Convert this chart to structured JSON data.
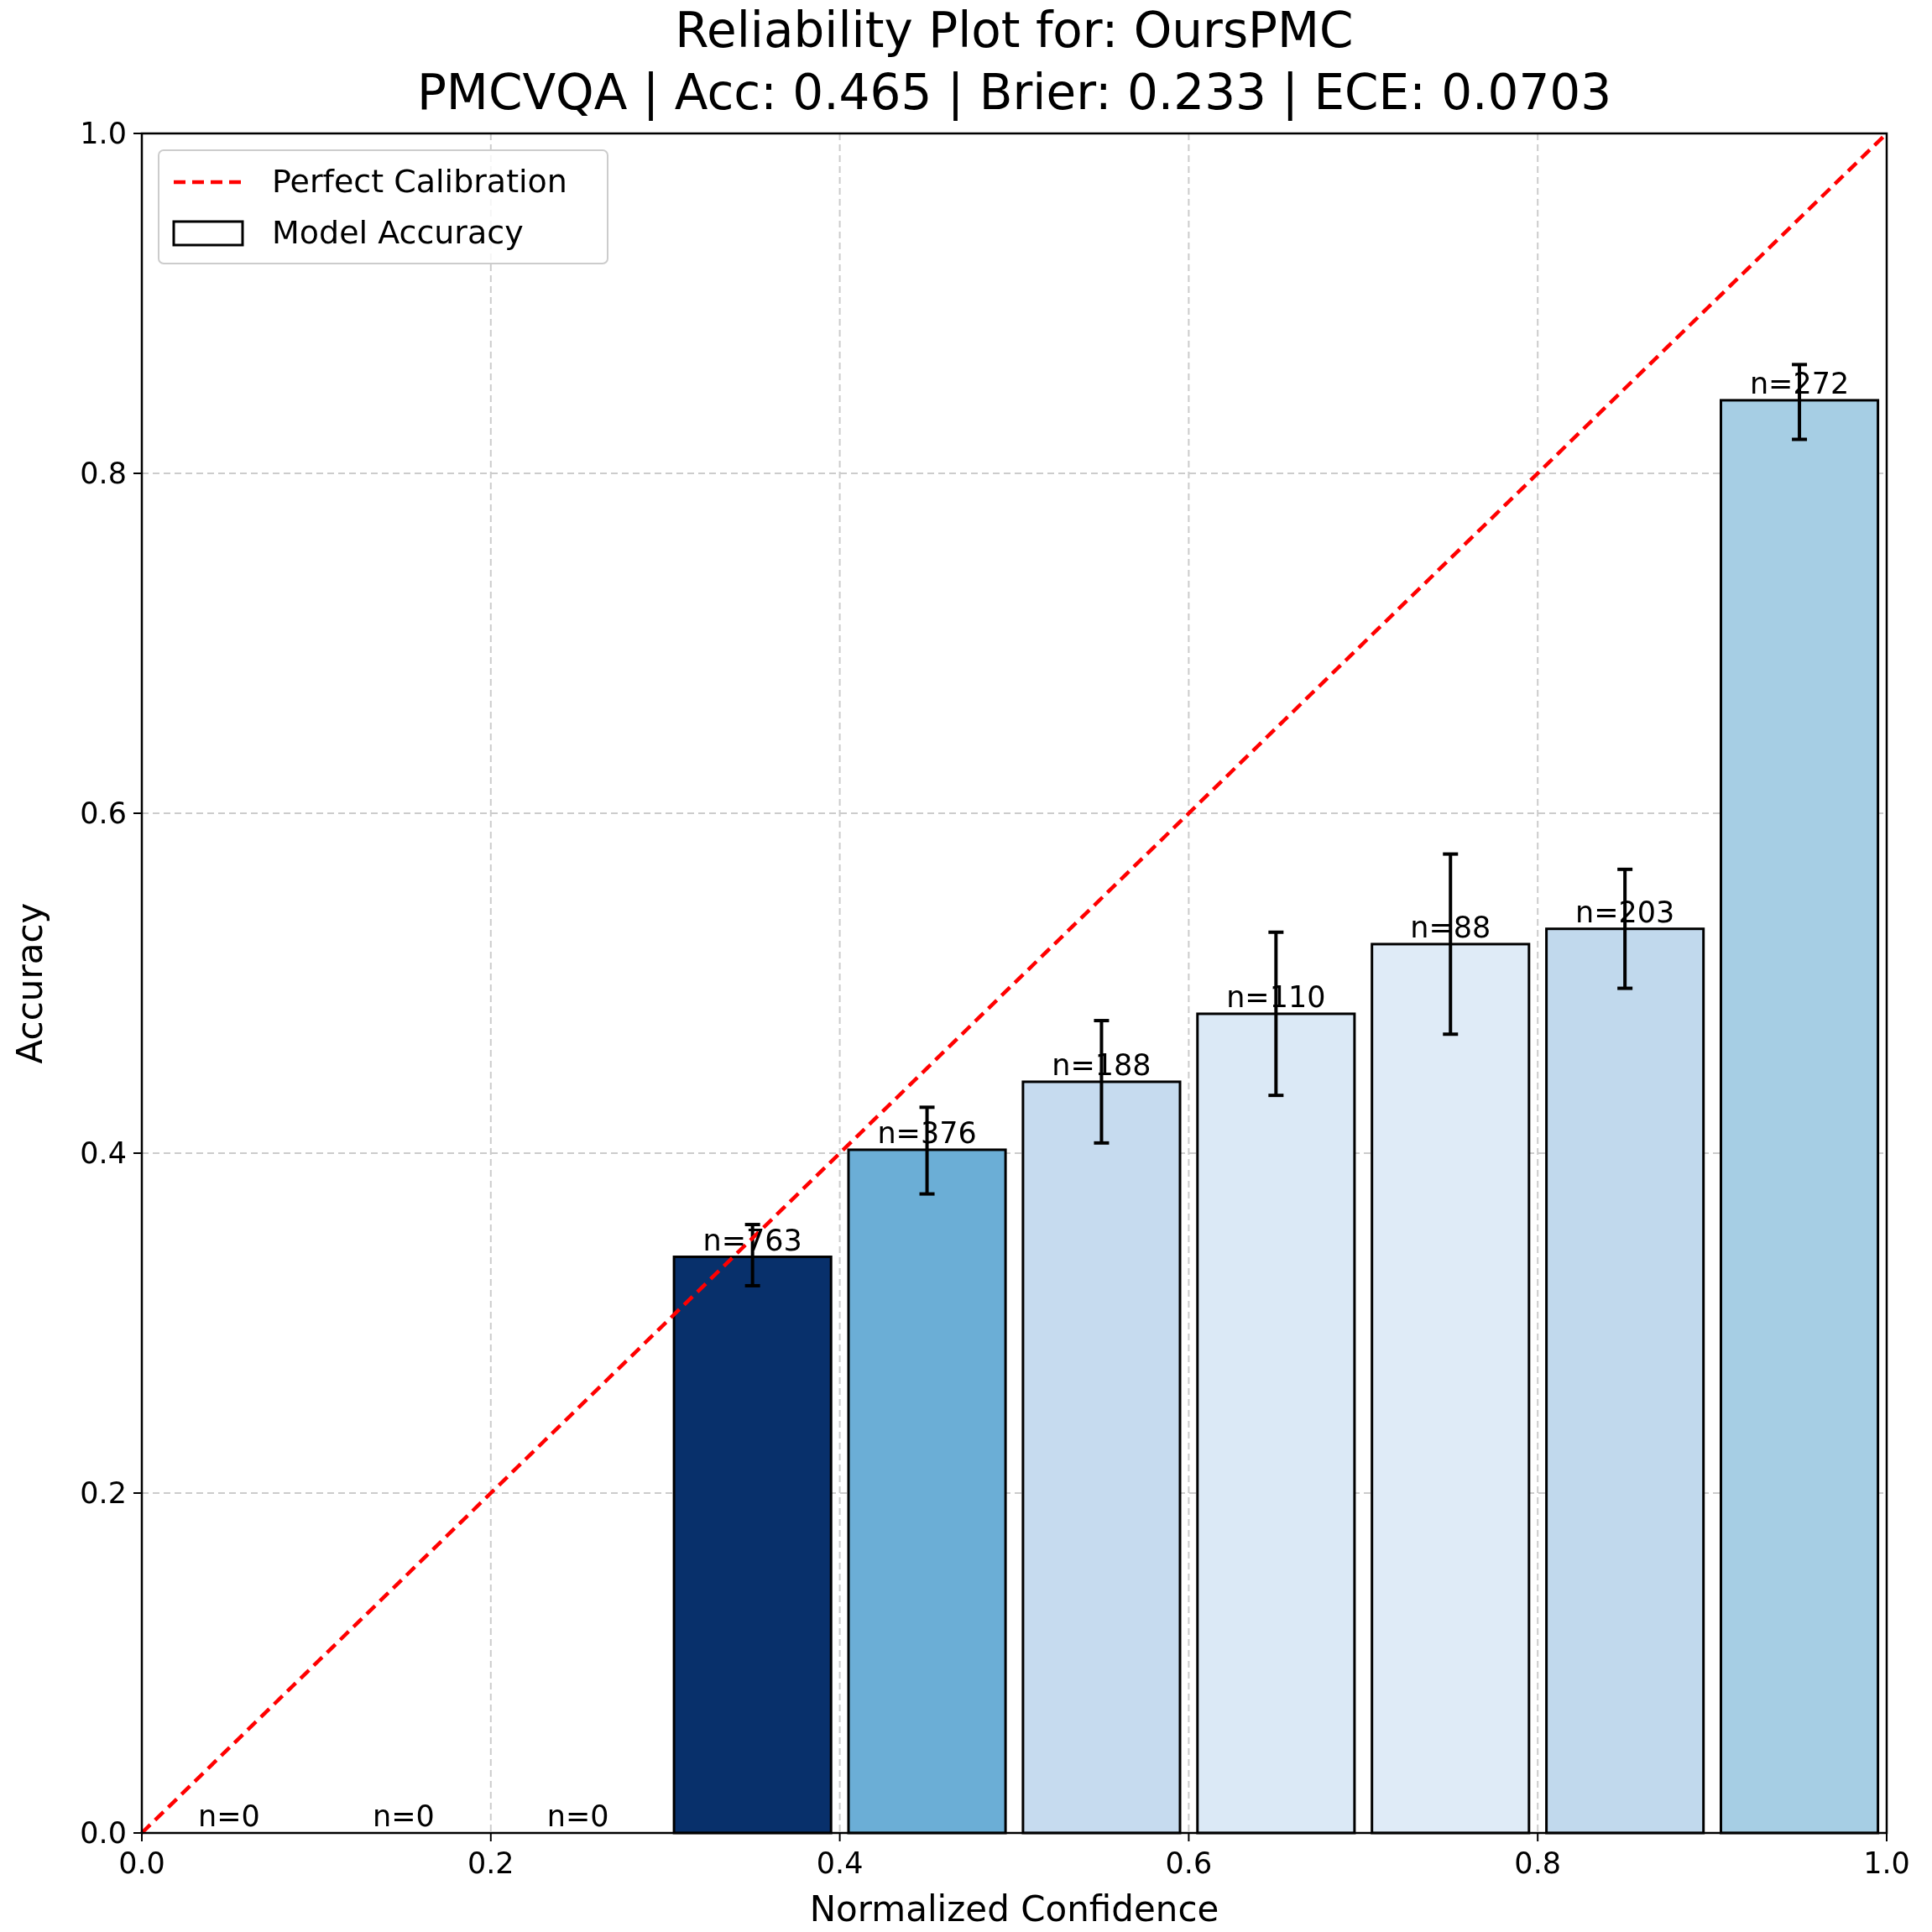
{
  "chart_data": {
    "type": "bar",
    "title": "Reliability Plot for: OursPMC",
    "subtitle": "PMCVQA | Acc: 0.465 | Brier: 0.233 | ECE: 0.0703",
    "xlabel": "Normalized Confidence",
    "ylabel": "Accuracy",
    "x": [
      0.05,
      0.15,
      0.25,
      0.35,
      0.45,
      0.55,
      0.65,
      0.75,
      0.85,
      0.95
    ],
    "xlim": [
      0,
      1
    ],
    "xticks": [
      {
        "value": 0,
        "label": "0.0"
      },
      {
        "value": 0.2,
        "label": "0.2"
      },
      {
        "value": 0.4,
        "label": "0.4"
      },
      {
        "value": 0.6,
        "label": "0.6"
      },
      {
        "value": 0.8,
        "label": "0.8"
      },
      {
        "value": 1,
        "label": "1.0"
      }
    ],
    "ylim": [
      0,
      1
    ],
    "yticks": [
      {
        "value": 0,
        "label": "0.0"
      },
      {
        "value": 0.2,
        "label": "0.2"
      },
      {
        "value": 0.4,
        "label": "0.4"
      },
      {
        "value": 0.6,
        "label": "0.6"
      },
      {
        "value": 0.8,
        "label": "0.8"
      },
      {
        "value": 1,
        "label": "1.0"
      }
    ],
    "series": [
      {
        "type": "line",
        "name": "Perfect Calibration",
        "color": "#ff0000",
        "line_style": "dashed",
        "x": [
          0,
          1
        ],
        "values": [
          0,
          1
        ]
      },
      {
        "name": "Model Accuracy",
        "color": "#ffffff",
        "colors": [
          "#f7fbff",
          "#f7fbff",
          "#f7fbff",
          "#08306b",
          "#6baed6",
          "#c6dbef",
          "#dbe9f6",
          "#dfebf7",
          "#c1d9ed",
          "#a6cee4"
        ],
        "values": [
          0,
          0,
          0,
          0.339,
          0.402,
          0.442,
          0.482,
          0.523,
          0.532,
          0.843
        ],
        "errors": [
          null,
          null,
          null,
          [
            0.322,
            0.358
          ],
          [
            0.376,
            0.427
          ],
          [
            0.406,
            0.478
          ],
          [
            0.434,
            0.53
          ],
          [
            0.47,
            0.576
          ],
          [
            0.497,
            0.567
          ],
          [
            0.82,
            0.864
          ]
        ]
      }
    ],
    "annotations": [
      {
        "text": "n=0",
        "x": 0.05,
        "y": 0
      },
      {
        "text": "n=0",
        "x": 0.15,
        "y": 0
      },
      {
        "text": "n=0",
        "x": 0.25,
        "y": 0
      },
      {
        "text": "n=763",
        "x": 0.35,
        "y": 0.339
      },
      {
        "text": "n=376",
        "x": 0.45,
        "y": 0.402
      },
      {
        "text": "n=188",
        "x": 0.55,
        "y": 0.442
      },
      {
        "text": "n=110",
        "x": 0.65,
        "y": 0.482
      },
      {
        "text": "n=88",
        "x": 0.75,
        "y": 0.523
      },
      {
        "text": "n=203",
        "x": 0.85,
        "y": 0.532
      },
      {
        "text": "n=272",
        "x": 0.95,
        "y": 0.843
      }
    ],
    "grid": true,
    "legend": "top left"
  }
}
